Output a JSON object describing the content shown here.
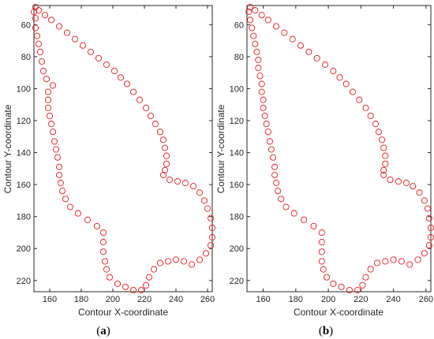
{
  "colors": {
    "marker": "#e8191a",
    "axis": "#262626",
    "background": "#ffffff"
  },
  "chart_data": [
    {
      "type": "scatter",
      "panel_label": "(a)",
      "xlabel": "Contour X-coordinate",
      "ylabel": "Contour Y-coordinate",
      "xlim": [
        150,
        263
      ],
      "ylim": [
        227,
        48
      ],
      "y_reversed": true,
      "grid": false,
      "marker": "open-circle",
      "xticks": [
        160,
        180,
        200,
        220,
        240,
        260
      ],
      "yticks": [
        60,
        80,
        100,
        120,
        140,
        160,
        180,
        200,
        220
      ],
      "points": [
        [
          151,
          49
        ],
        [
          153,
          51
        ],
        [
          157,
          54
        ],
        [
          161,
          57
        ],
        [
          166,
          61
        ],
        [
          171,
          65
        ],
        [
          176,
          69
        ],
        [
          181,
          73
        ],
        [
          186,
          77
        ],
        [
          191,
          81
        ],
        [
          196,
          85
        ],
        [
          201,
          89
        ],
        [
          205,
          93
        ],
        [
          209,
          97
        ],
        [
          213,
          102
        ],
        [
          217,
          107
        ],
        [
          221,
          112
        ],
        [
          224,
          117
        ],
        [
          227,
          122
        ],
        [
          230,
          127
        ],
        [
          232,
          132
        ],
        [
          233,
          137
        ],
        [
          234,
          142
        ],
        [
          234,
          147
        ],
        [
          233,
          151
        ],
        [
          232,
          154
        ],
        [
          236,
          157
        ],
        [
          241,
          158
        ],
        [
          246,
          159
        ],
        [
          251,
          161
        ],
        [
          255,
          165
        ],
        [
          258,
          170
        ],
        [
          260,
          175
        ],
        [
          262,
          181
        ],
        [
          263,
          187
        ],
        [
          263,
          193
        ],
        [
          262,
          198
        ],
        [
          259,
          203
        ],
        [
          255,
          207
        ],
        [
          250,
          210
        ],
        [
          245,
          208
        ],
        [
          240,
          207
        ],
        [
          235,
          208
        ],
        [
          230,
          209
        ],
        [
          226,
          213
        ],
        [
          223,
          218
        ],
        [
          221,
          223
        ],
        [
          218,
          226
        ],
        [
          213,
          226
        ],
        [
          208,
          224
        ],
        [
          203,
          222
        ],
        [
          198,
          218
        ],
        [
          196,
          213
        ],
        [
          195,
          208
        ],
        [
          194,
          202
        ],
        [
          194,
          196
        ],
        [
          194,
          190
        ],
        [
          190,
          186
        ],
        [
          184,
          182
        ],
        [
          178,
          178
        ],
        [
          173,
          174
        ],
        [
          170,
          169
        ],
        [
          168,
          164
        ],
        [
          167,
          159
        ],
        [
          166,
          154
        ],
        [
          166,
          149
        ],
        [
          165,
          143
        ],
        [
          164,
          138
        ],
        [
          163,
          133
        ],
        [
          162,
          127
        ],
        [
          161,
          122
        ],
        [
          160,
          117
        ],
        [
          159,
          112
        ],
        [
          159,
          107
        ],
        [
          159,
          102
        ],
        [
          162,
          98
        ],
        [
          158,
          94
        ],
        [
          156,
          89
        ],
        [
          155,
          83
        ],
        [
          154,
          77
        ],
        [
          153,
          72
        ],
        [
          152,
          67
        ],
        [
          151,
          62
        ],
        [
          151,
          56
        ],
        [
          150,
          52
        ]
      ]
    },
    {
      "type": "scatter",
      "panel_label": "(b)",
      "xlabel": "Contour X-coordinate",
      "ylabel": "Contour Y-coordinate",
      "xlim": [
        150,
        263
      ],
      "ylim": [
        227,
        48
      ],
      "y_reversed": true,
      "grid": false,
      "marker": "open-circle",
      "xticks": [
        160,
        180,
        200,
        220,
        240,
        260
      ],
      "yticks": [
        60,
        80,
        100,
        120,
        140,
        160,
        180,
        200,
        220
      ],
      "points": [
        [
          152,
          49
        ],
        [
          155,
          51
        ],
        [
          159,
          54
        ],
        [
          163,
          57
        ],
        [
          168,
          61
        ],
        [
          173,
          65
        ],
        [
          178,
          69
        ],
        [
          183,
          73
        ],
        [
          188,
          77
        ],
        [
          193,
          81
        ],
        [
          198,
          85
        ],
        [
          203,
          89
        ],
        [
          207,
          93
        ],
        [
          211,
          97
        ],
        [
          215,
          102
        ],
        [
          219,
          107
        ],
        [
          223,
          112
        ],
        [
          226,
          117
        ],
        [
          229,
          122
        ],
        [
          231,
          127
        ],
        [
          233,
          132
        ],
        [
          234,
          137
        ],
        [
          235,
          142
        ],
        [
          235,
          147
        ],
        [
          234,
          151
        ],
        [
          234,
          154
        ],
        [
          238,
          157
        ],
        [
          243,
          158
        ],
        [
          248,
          159
        ],
        [
          252,
          161
        ],
        [
          256,
          165
        ],
        [
          259,
          170
        ],
        [
          261,
          175
        ],
        [
          262,
          181
        ],
        [
          263,
          187
        ],
        [
          263,
          193
        ],
        [
          262,
          198
        ],
        [
          259,
          203
        ],
        [
          255,
          207
        ],
        [
          250,
          210
        ],
        [
          245,
          208
        ],
        [
          240,
          207
        ],
        [
          235,
          208
        ],
        [
          230,
          209
        ],
        [
          226,
          213
        ],
        [
          223,
          218
        ],
        [
          221,
          223
        ],
        [
          218,
          226
        ],
        [
          213,
          226
        ],
        [
          208,
          224
        ],
        [
          203,
          222
        ],
        [
          199,
          218
        ],
        [
          197,
          213
        ],
        [
          196,
          208
        ],
        [
          196,
          202
        ],
        [
          196,
          196
        ],
        [
          196,
          190
        ],
        [
          191,
          186
        ],
        [
          185,
          182
        ],
        [
          179,
          178
        ],
        [
          174,
          174
        ],
        [
          171,
          169
        ],
        [
          169,
          164
        ],
        [
          168,
          159
        ],
        [
          167,
          154
        ],
        [
          167,
          149
        ],
        [
          166,
          143
        ],
        [
          165,
          138
        ],
        [
          164,
          133
        ],
        [
          163,
          127
        ],
        [
          162,
          122
        ],
        [
          161,
          117
        ],
        [
          160,
          112
        ],
        [
          160,
          107
        ],
        [
          159,
          102
        ],
        [
          159,
          97
        ],
        [
          158,
          92
        ],
        [
          157,
          87
        ],
        [
          157,
          82
        ],
        [
          156,
          77
        ],
        [
          155,
          72
        ],
        [
          154,
          67
        ],
        [
          153,
          62
        ],
        [
          152,
          57
        ],
        [
          151,
          52
        ]
      ]
    }
  ]
}
